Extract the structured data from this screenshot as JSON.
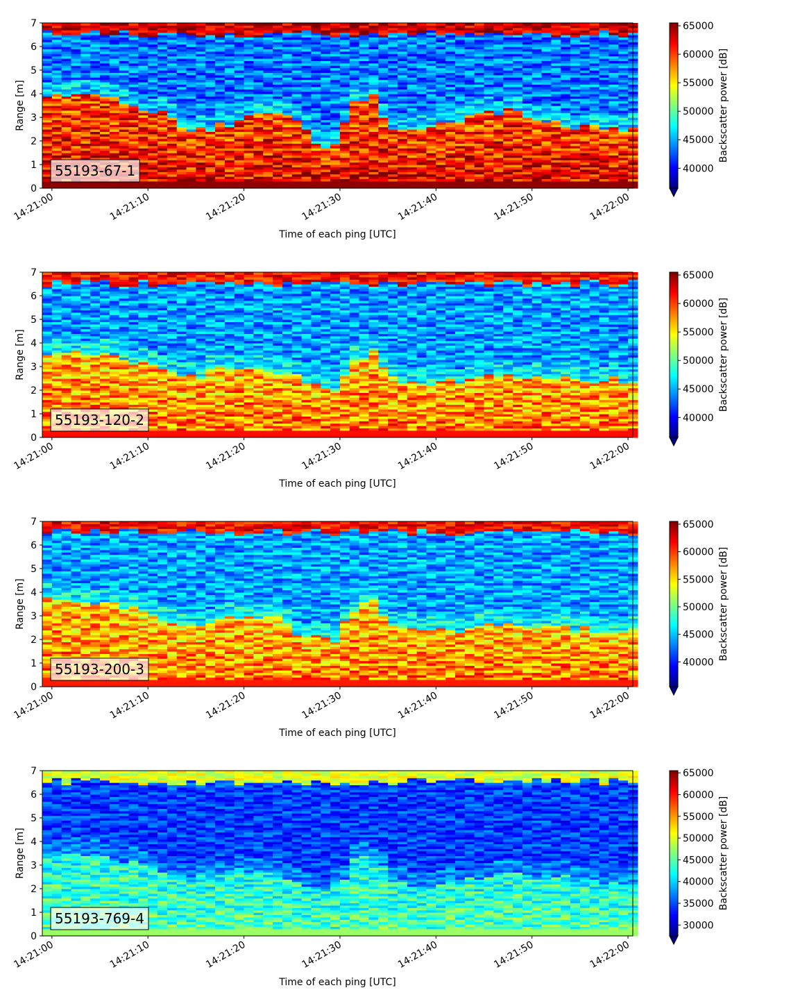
{
  "chart_data": [
    {
      "type": "heatmap",
      "label": "55193-67-1",
      "xlabel": "Time of each ping [UTC]",
      "ylabel": "Range [m]",
      "xticks": [
        "14:21:00",
        "14:21:10",
        "14:21:20",
        "14:21:30",
        "14:21:40",
        "14:21:50",
        "14:22:00"
      ],
      "xlim": [
        "14:20:59",
        "14:22:00.5"
      ],
      "ylim": [
        0,
        7
      ],
      "yticks": [
        0,
        1,
        2,
        3,
        4,
        5,
        6,
        7
      ],
      "colorbar_label": "Backscatter power [dB]",
      "clim": [
        36500,
        65500
      ],
      "cticks": [
        40000,
        45000,
        50000,
        55000,
        60000,
        65000
      ],
      "extend": "min",
      "colormap": "jet",
      "profile": {
        "time": [
          0,
          3,
          6,
          9,
          12,
          15,
          18,
          21,
          24,
          26,
          28,
          30,
          32,
          34,
          36,
          39,
          42,
          45,
          48,
          51,
          54,
          57,
          60
        ],
        "boundary_m": [
          3.8,
          4.1,
          3.8,
          3.5,
          3.2,
          2.5,
          2.6,
          3.2,
          3.3,
          2.9,
          2.0,
          1.7,
          3.7,
          3.8,
          2.4,
          2.5,
          2.8,
          3.1,
          3.3,
          2.9,
          2.6,
          2.6,
          2.5
        ],
        "bottom_db": 62500,
        "water_db": 43500,
        "surface_db": 63000
      },
      "grid": false
    },
    {
      "type": "heatmap",
      "label": "55193-120-2",
      "xlabel": "Time of each ping [UTC]",
      "ylabel": "Range [m]",
      "xticks": [
        "14:21:00",
        "14:21:10",
        "14:21:20",
        "14:21:30",
        "14:21:40",
        "14:21:50",
        "14:22:00"
      ],
      "xlim": [
        "14:20:59",
        "14:22:00.5"
      ],
      "ylim": [
        0,
        7
      ],
      "yticks": [
        0,
        1,
        2,
        3,
        4,
        5,
        6,
        7
      ],
      "colorbar_label": "Backscatter power [dB]",
      "clim": [
        36500,
        65500
      ],
      "cticks": [
        40000,
        45000,
        50000,
        55000,
        60000,
        65000
      ],
      "extend": "min",
      "colormap": "jet",
      "profile": {
        "time": [
          0,
          3,
          6,
          9,
          12,
          15,
          18,
          21,
          24,
          26,
          28,
          30,
          32,
          34,
          36,
          39,
          42,
          45,
          48,
          51,
          54,
          57,
          60
        ],
        "boundary_m": [
          3.6,
          3.7,
          3.5,
          3.2,
          2.9,
          2.5,
          2.9,
          3.0,
          2.8,
          2.5,
          2.1,
          2.0,
          3.4,
          3.6,
          2.5,
          2.3,
          2.4,
          2.6,
          2.7,
          2.5,
          2.5,
          2.5,
          2.4
        ],
        "bottom_db": 59000,
        "water_db": 44500,
        "surface_db": 61500
      },
      "grid": false
    },
    {
      "type": "heatmap",
      "label": "55193-200-3",
      "xlabel": "Time of each ping [UTC]",
      "ylabel": "Range [m]",
      "xticks": [
        "14:21:00",
        "14:21:10",
        "14:21:20",
        "14:21:30",
        "14:21:40",
        "14:21:50",
        "14:22:00"
      ],
      "xlim": [
        "14:20:59",
        "14:22:00.5"
      ],
      "ylim": [
        0,
        7
      ],
      "yticks": [
        0,
        1,
        2,
        3,
        4,
        5,
        6,
        7
      ],
      "colorbar_label": "Backscatter power [dB]",
      "clim": [
        35500,
        65500
      ],
      "cticks": [
        40000,
        45000,
        50000,
        55000,
        60000,
        65000
      ],
      "extend": "min",
      "colormap": "jet",
      "profile": {
        "time": [
          0,
          3,
          6,
          9,
          12,
          15,
          18,
          21,
          24,
          26,
          28,
          30,
          32,
          34,
          36,
          39,
          42,
          45,
          48,
          51,
          54,
          57,
          60
        ],
        "boundary_m": [
          3.6,
          3.7,
          3.6,
          3.3,
          2.9,
          2.5,
          2.8,
          3.0,
          2.8,
          2.4,
          2.1,
          2.0,
          3.4,
          3.6,
          2.5,
          2.3,
          2.4,
          2.5,
          2.7,
          2.6,
          2.5,
          2.4,
          2.4
        ],
        "bottom_db": 58500,
        "water_db": 44000,
        "surface_db": 61500
      },
      "grid": false
    },
    {
      "type": "heatmap",
      "label": "55193-769-4",
      "xlabel": "Time of each ping [UTC]",
      "ylabel": "Range [m]",
      "xticks": [
        "14:21:00",
        "14:21:10",
        "14:21:20",
        "14:21:30",
        "14:21:40",
        "14:21:50",
        "14:22:00"
      ],
      "xlim": [
        "14:20:59",
        "14:22:00.5"
      ],
      "ylim": [
        0,
        7
      ],
      "yticks": [
        0,
        1,
        2,
        3,
        4,
        5,
        6,
        7
      ],
      "colorbar_label": "Backscatter power [dB]",
      "clim": [
        27500,
        65500
      ],
      "cticks": [
        30000,
        35000,
        40000,
        45000,
        50000,
        55000,
        60000,
        65000
      ],
      "extend": "min",
      "colormap": "jet",
      "profile": {
        "time": [
          0,
          3,
          6,
          9,
          12,
          15,
          18,
          21,
          24,
          26,
          28,
          30,
          32,
          34,
          36,
          39,
          42,
          45,
          48,
          51,
          54,
          57,
          60
        ],
        "boundary_m": [
          3.5,
          3.5,
          3.4,
          3.2,
          2.8,
          2.4,
          2.6,
          2.8,
          2.6,
          2.3,
          2.0,
          2.0,
          3.2,
          3.4,
          2.4,
          2.2,
          2.3,
          2.5,
          2.6,
          2.5,
          2.4,
          2.3,
          2.3
        ],
        "bottom_db": 45000,
        "water_db": 34500,
        "surface_db": 50000
      },
      "grid": false
    }
  ]
}
